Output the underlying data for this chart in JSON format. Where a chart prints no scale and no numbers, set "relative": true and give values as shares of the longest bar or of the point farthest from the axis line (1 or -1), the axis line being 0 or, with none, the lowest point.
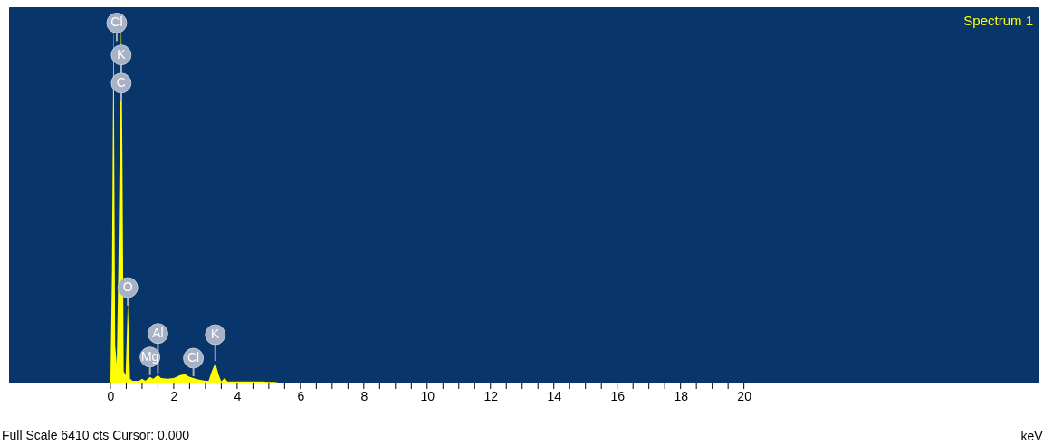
{
  "chart_data": {
    "type": "area",
    "xlabel": "keV",
    "relative": true,
    "legend": "top right",
    "xlim": [
      -3.2,
      29.3
    ],
    "xticks": [
      0,
      {
        "value": 0.5,
        "label": null
      },
      {
        "value": 1,
        "label": null
      },
      {
        "value": 1.5,
        "label": null
      },
      2,
      {
        "value": 2.5,
        "label": null
      },
      {
        "value": 3,
        "label": null
      },
      {
        "value": 3.5,
        "label": null
      },
      4,
      {
        "value": 4.5,
        "label": null
      },
      {
        "value": 5,
        "label": null
      },
      {
        "value": 5.5,
        "label": null
      },
      6,
      {
        "value": 6.5,
        "label": null
      },
      {
        "value": 7,
        "label": null
      },
      {
        "value": 7.5,
        "label": null
      },
      8,
      {
        "value": 8.5,
        "label": null
      },
      {
        "value": 9,
        "label": null
      },
      {
        "value": 9.5,
        "label": null
      },
      10,
      {
        "value": 10.5,
        "label": null
      },
      {
        "value": 11,
        "label": null
      },
      {
        "value": 11.5,
        "label": null
      },
      12,
      {
        "value": 12.5,
        "label": null
      },
      {
        "value": 13,
        "label": null
      },
      {
        "value": 13.5,
        "label": null
      },
      14,
      {
        "value": 14.5,
        "label": null
      },
      {
        "value": 15,
        "label": null
      },
      {
        "value": 15.5,
        "label": null
      },
      16,
      {
        "value": 16.5,
        "label": null
      },
      {
        "value": 17,
        "label": null
      },
      {
        "value": 17.5,
        "label": null
      },
      18,
      {
        "value": 18.5,
        "label": null
      },
      {
        "value": 19,
        "label": null
      },
      {
        "value": 19.5,
        "label": null
      },
      20
    ],
    "x": [
      0,
      0.05,
      0.1,
      0.15,
      0.2,
      0.25,
      0.34,
      0.38,
      0.42,
      0.48,
      0.55,
      0.62,
      0.7,
      0.9,
      1.0,
      1.1,
      1.25,
      1.35,
      1.5,
      1.6,
      1.8,
      2.0,
      2.2,
      2.35,
      2.5,
      2.62,
      2.8,
      3.0,
      3.1,
      3.2,
      3.31,
      3.42,
      3.5,
      3.6,
      3.7,
      4.0,
      4.5,
      4.8,
      5.0,
      5.2,
      5.3
    ],
    "series": [
      {
        "name": "Spectrum 1",
        "color": "#ffff00",
        "values": [
          0,
          0.3,
          1,
          0.1,
          0.05,
          0.3,
          0.98,
          0.6,
          0.03,
          0.02,
          0.215,
          0.01,
          0.005,
          0.005,
          0.01,
          0.005,
          0.015,
          0.01,
          0.02,
          0.012,
          0.01,
          0.012,
          0.02,
          0.022,
          0.015,
          0.012,
          0.008,
          0.005,
          0.005,
          0.03,
          0.053,
          0.02,
          0.003,
          0.012,
          0.003,
          0.003,
          0.003,
          0.003,
          0.002,
          0.002,
          0
        ]
      }
    ],
    "annotations": [
      {
        "text": "Cl",
        "x": 0.2,
        "y": 0.905
      },
      {
        "text": "K",
        "x": 0.34,
        "y": 0.82
      },
      {
        "text": "C",
        "x": 0.34,
        "y": 0.745
      },
      {
        "text": "O",
        "x": 0.55,
        "y": 0.2
      },
      {
        "text": "Al",
        "x": 1.5,
        "y": 0.02
      },
      {
        "text": "Mg",
        "x": 1.25,
        "y": 0.015
      },
      {
        "text": "Cl",
        "x": 2.62,
        "y": 0.012
      },
      {
        "text": "K",
        "x": 3.31,
        "y": 0.053
      },
      "Full Scale 6410 cts Cursor: 0.000"
    ]
  }
}
